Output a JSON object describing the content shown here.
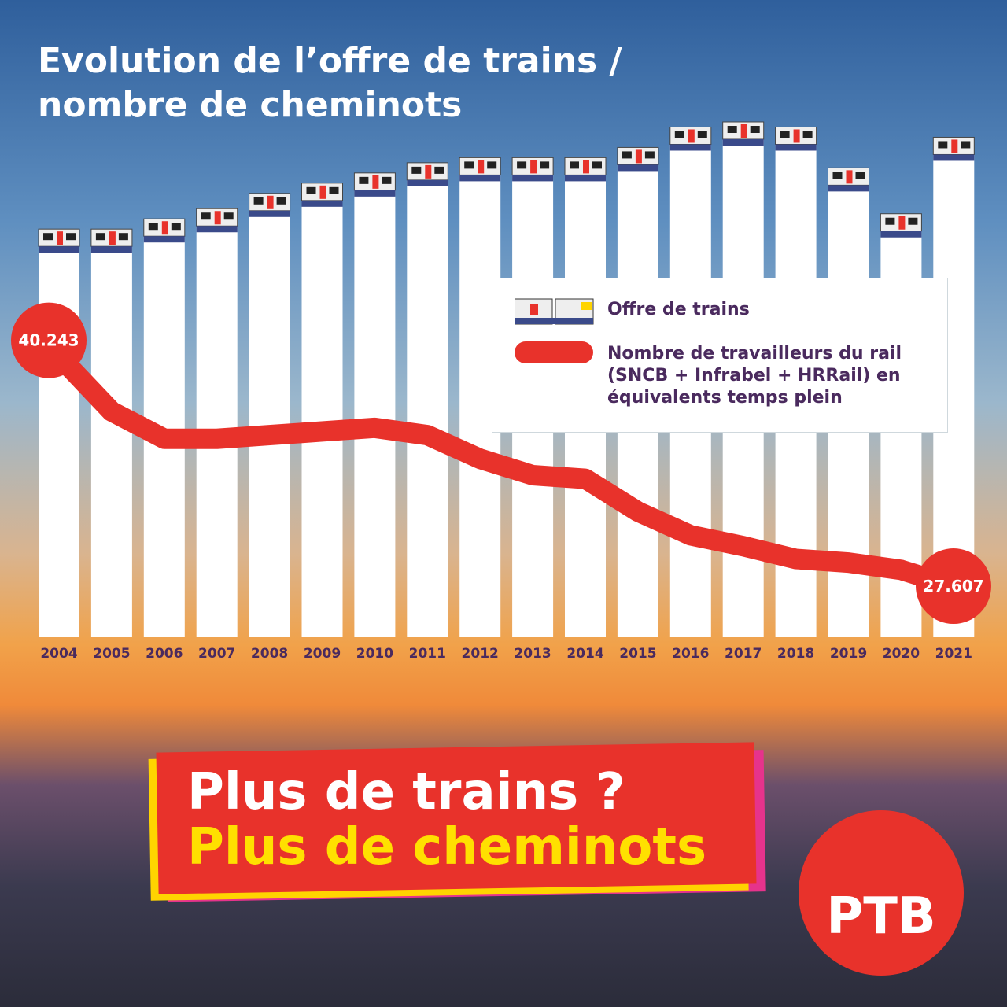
{
  "chart_data": {
    "type": "bar",
    "title": "Evolution de l’offre de trains / nombre de cheminots",
    "categories": [
      "2004",
      "2005",
      "2006",
      "2007",
      "2008",
      "2009",
      "2010",
      "2011",
      "2012",
      "2013",
      "2014",
      "2015",
      "2016",
      "2017",
      "2018",
      "2019",
      "2020",
      "2021"
    ],
    "series": [
      {
        "name": "Offre de trains",
        "color": "#ffffff",
        "values": [
          80,
          80,
          82,
          84,
          87,
          89,
          91,
          93,
          94,
          94,
          94,
          96,
          100,
          101,
          100,
          92,
          83,
          98
        ]
      },
      {
        "name": "Nombre de travailleurs du rail (SNCB + Infrabel + HRRail) en équivalents temps plein",
        "color": "#e8322b",
        "type": "line",
        "axis": "y2",
        "values": [
          40243,
          37200,
          35700,
          35700,
          35900,
          36100,
          36300,
          35900,
          34600,
          33700,
          33500,
          31700,
          30400,
          29800,
          29100,
          28900,
          28500,
          27607
        ],
        "value_labels": [
          "40.243",
          null,
          null,
          null,
          null,
          null,
          null,
          null,
          null,
          null,
          null,
          null,
          null,
          null,
          null,
          null,
          null,
          "27.607"
        ]
      }
    ],
    "ylim": [
      0,
      101
    ],
    "y2lim": [
      24800,
      53100
    ]
  },
  "slogan": [
    "Plus de trains ?",
    "Plus de cheminots"
  ],
  "logo": "PTB"
}
